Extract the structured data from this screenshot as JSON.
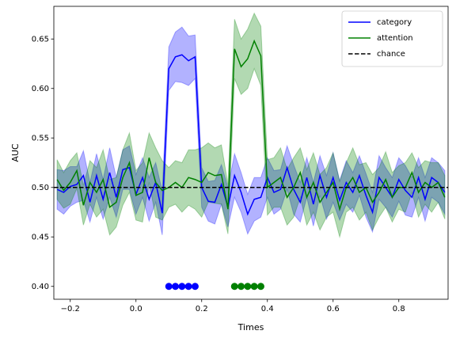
{
  "chart_data": {
    "type": "line",
    "xlabel": "Times",
    "ylabel": "AUC",
    "xlim": [
      -0.25,
      0.95
    ],
    "ylim": [
      0.387,
      0.683
    ],
    "xticks": [
      {
        "value": -0.2,
        "label": "−0.2"
      },
      {
        "value": 0,
        "label": "0.0"
      },
      0.2,
      0.4,
      0.6,
      0.8
    ],
    "yticks": [
      {
        "value": 0.4,
        "label": "0.40"
      },
      0.45,
      {
        "value": 0.5,
        "label": "0.50"
      },
      0.55,
      {
        "value": 0.6,
        "label": "0.60"
      },
      0.65
    ],
    "legend": "upper right",
    "x": [
      -0.24,
      -0.22,
      -0.2,
      -0.18,
      -0.16,
      -0.14,
      -0.12,
      -0.1,
      -0.08,
      -0.06,
      -0.04,
      -0.02,
      0,
      0.02,
      0.04,
      0.06,
      0.08,
      0.1,
      0.12,
      0.14,
      0.16,
      0.18,
      0.2,
      0.22,
      0.24,
      0.26,
      0.28,
      0.3,
      0.32,
      0.34,
      0.36,
      0.38,
      0.4,
      0.42,
      0.44,
      0.46,
      0.48,
      0.5,
      0.52,
      0.54,
      0.56,
      0.58,
      0.6,
      0.62,
      0.64,
      0.66,
      0.68,
      0.7,
      0.72,
      0.74,
      0.76,
      0.78,
      0.8,
      0.82,
      0.84,
      0.86,
      0.88,
      0.9,
      0.92,
      0.94
    ],
    "series": [
      {
        "name": "category",
        "color": "#0000ff",
        "values": [
          0.498,
          0.495,
          0.501,
          0.503,
          0.512,
          0.485,
          0.512,
          0.488,
          0.515,
          0.49,
          0.518,
          0.52,
          0.493,
          0.51,
          0.488,
          0.505,
          0.474,
          0.62,
          0.632,
          0.634,
          0.628,
          0.632,
          0.5,
          0.486,
          0.485,
          0.503,
          0.48,
          0.512,
          0.495,
          0.473,
          0.488,
          0.49,
          0.51,
          0.495,
          0.498,
          0.52,
          0.498,
          0.485,
          0.51,
          0.483,
          0.512,
          0.49,
          0.51,
          0.487,
          0.505,
          0.495,
          0.512,
          0.492,
          0.475,
          0.51,
          0.5,
          0.49,
          0.508,
          0.497,
          0.49,
          0.51,
          0.488,
          0.51,
          0.505,
          0.495
        ],
        "error": [
          0.02,
          0.022,
          0.02,
          0.018,
          0.025,
          0.02,
          0.022,
          0.02,
          0.025,
          0.02,
          0.02,
          0.022,
          0.02,
          0.02,
          0.022,
          0.02,
          0.022,
          0.022,
          0.025,
          0.028,
          0.025,
          0.022,
          0.02,
          0.02,
          0.022,
          0.02,
          0.02,
          0.022,
          0.02,
          0.02,
          0.022,
          0.02,
          0.02,
          0.022,
          0.02,
          0.022,
          0.025,
          0.02,
          0.02,
          0.022,
          0.02,
          0.022,
          0.025,
          0.02,
          0.022,
          0.02,
          0.02,
          0.022,
          0.02,
          0.022,
          0.02,
          0.02,
          0.022,
          0.025,
          0.02,
          0.02,
          0.022,
          0.02,
          0.02,
          0.022
        ]
      },
      {
        "name": "attention",
        "color": "#008000",
        "values": [
          0.508,
          0.497,
          0.505,
          0.517,
          0.482,
          0.505,
          0.495,
          0.508,
          0.48,
          0.485,
          0.51,
          0.525,
          0.492,
          0.495,
          0.53,
          0.505,
          0.497,
          0.5,
          0.505,
          0.5,
          0.51,
          0.508,
          0.505,
          0.515,
          0.512,
          0.513,
          0.478,
          0.64,
          0.622,
          0.63,
          0.648,
          0.633,
          0.5,
          0.505,
          0.51,
          0.49,
          0.5,
          0.515,
          0.49,
          0.505,
          0.485,
          0.495,
          0.505,
          0.478,
          0.5,
          0.51,
          0.495,
          0.5,
          0.485,
          0.495,
          0.508,
          0.49,
          0.5,
          0.5,
          0.515,
          0.495,
          0.505,
          0.5,
          0.505,
          0.49
        ],
        "error": [
          0.02,
          0.018,
          0.022,
          0.018,
          0.02,
          0.022,
          0.025,
          0.03,
          0.028,
          0.025,
          0.028,
          0.03,
          0.025,
          0.03,
          0.025,
          0.035,
          0.03,
          0.02,
          0.022,
          0.025,
          0.028,
          0.03,
          0.035,
          0.03,
          0.028,
          0.03,
          0.025,
          0.03,
          0.028,
          0.03,
          0.028,
          0.03,
          0.028,
          0.025,
          0.03,
          0.028,
          0.03,
          0.025,
          0.028,
          0.03,
          0.028,
          0.025,
          0.03,
          0.028,
          0.025,
          0.03,
          0.028,
          0.025,
          0.028,
          0.025,
          0.028,
          0.025,
          0.022,
          0.025,
          0.02,
          0.025,
          0.022,
          0.025,
          0.02,
          0.022
        ]
      }
    ],
    "hlines": [
      {
        "name": "chance",
        "y": 0.5,
        "color": "#000000",
        "dashed": true
      }
    ],
    "sig_points": [
      {
        "color": "#0000ff",
        "y": 0.4,
        "x": [
          0.1,
          0.12,
          0.14,
          0.16,
          0.18
        ]
      },
      {
        "color": "#008000",
        "y": 0.4,
        "x": [
          0.3,
          0.32,
          0.34,
          0.36,
          0.38
        ]
      }
    ]
  }
}
